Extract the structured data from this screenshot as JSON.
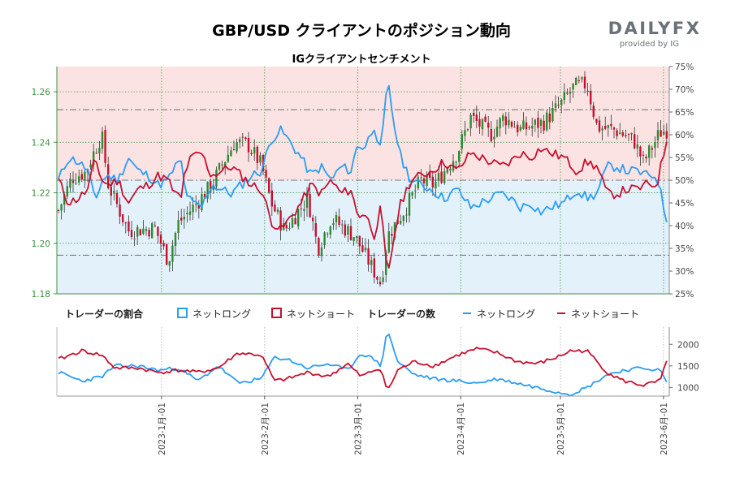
{
  "header": {
    "title": "GBP/USD クライアントのポジション動向",
    "subtitle": "IGクライアントセンチメント",
    "logo_main": "DAILYFX",
    "logo_sub": "provided by IG"
  },
  "legend": {
    "ratio_title": "トレーダーの割合",
    "count_title": "トレーダーの数",
    "net_long": "ネットロング",
    "net_short": "ネットショート"
  },
  "colors": {
    "long": "#2a9df4",
    "short": "#c8102e",
    "candle_up": "#2e8b2e",
    "candle_down": "#c8102e",
    "bg_top": "#fbe3e3",
    "bg_bottom": "#e3f1fb"
  },
  "chart_data": [
    {
      "type": "candlestick",
      "title": "GBP/USD",
      "axis_left": {
        "label": "GBP/USD",
        "ylim": [
          1.18,
          1.27
        ],
        "ticks": [
          "1.18",
          "1.20",
          "1.22",
          "1.24",
          "1.26"
        ]
      },
      "date_ticks": [
        "2023-1月-01",
        "2023-2月-01",
        "2023-3月-01",
        "2023-4月-01",
        "2023-5月-01",
        "2023-6月-01"
      ],
      "price_anchors": [
        [
          "2022-12-01",
          1.213
        ],
        [
          "2022-12-05",
          1.226
        ],
        [
          "2022-12-09",
          1.228
        ],
        [
          "2022-12-14",
          1.243
        ],
        [
          "2022-12-16",
          1.223
        ],
        [
          "2022-12-22",
          1.205
        ],
        [
          "2022-12-30",
          1.206
        ],
        [
          "2023-01-03",
          1.193
        ],
        [
          "2023-01-06",
          1.208
        ],
        [
          "2023-01-11",
          1.215
        ],
        [
          "2023-01-16",
          1.223
        ],
        [
          "2023-01-20",
          1.233
        ],
        [
          "2023-01-23",
          1.24
        ],
        [
          "2023-01-27",
          1.239
        ],
        [
          "2023-01-31",
          1.231
        ],
        [
          "2023-02-03",
          1.216
        ],
        [
          "2023-02-07",
          1.205
        ],
        [
          "2023-02-14",
          1.218
        ],
        [
          "2023-02-17",
          1.198
        ],
        [
          "2023-02-21",
          1.21
        ],
        [
          "2023-02-28",
          1.203
        ],
        [
          "2023-03-08",
          1.184
        ],
        [
          "2023-03-10",
          1.203
        ],
        [
          "2023-03-15",
          1.213
        ],
        [
          "2023-03-20",
          1.225
        ],
        [
          "2023-03-24",
          1.223
        ],
        [
          "2023-03-31",
          1.236
        ],
        [
          "2023-04-04",
          1.25
        ],
        [
          "2023-04-10",
          1.243
        ],
        [
          "2023-04-14",
          1.25
        ],
        [
          "2023-04-19",
          1.245
        ],
        [
          "2023-04-26",
          1.248
        ],
        [
          "2023-05-01",
          1.255
        ],
        [
          "2023-05-05",
          1.262
        ],
        [
          "2023-05-09",
          1.263
        ],
        [
          "2023-05-12",
          1.246
        ],
        [
          "2023-05-17",
          1.245
        ],
        [
          "2023-05-23",
          1.241
        ],
        [
          "2023-05-26",
          1.232
        ],
        [
          "2023-05-31",
          1.244
        ],
        [
          "2023-06-02",
          1.245
        ]
      ]
    },
    {
      "type": "line",
      "title": "IGクライアントセンチメント",
      "axis_right": {
        "ylim": [
          25,
          75
        ],
        "unit": "%",
        "ticks": [
          "25%",
          "30%",
          "35%",
          "40%",
          "45%",
          "50%",
          "55%",
          "60%",
          "65%",
          "70%",
          "75%"
        ]
      },
      "series": [
        {
          "name": "ネットロング",
          "anchors": [
            [
              "2022-12-01",
              50
            ],
            [
              "2022-12-04",
              55
            ],
            [
              "2022-12-07",
              54
            ],
            [
              "2022-12-10",
              52
            ],
            [
              "2022-12-12",
              45
            ],
            [
              "2022-12-14",
              50
            ],
            [
              "2022-12-16",
              51
            ],
            [
              "2022-12-19",
              50
            ],
            [
              "2022-12-22",
              55
            ],
            [
              "2022-12-25",
              52
            ],
            [
              "2022-12-28",
              51
            ],
            [
              "2022-12-31",
              49
            ],
            [
              "2023-01-03",
              50
            ],
            [
              "2023-01-05",
              53
            ],
            [
              "2023-01-07",
              54
            ],
            [
              "2023-01-08",
              48
            ],
            [
              "2023-01-10",
              45
            ],
            [
              "2023-01-13",
              44
            ],
            [
              "2023-01-16",
              49
            ],
            [
              "2023-01-19",
              48
            ],
            [
              "2023-01-22",
              47
            ],
            [
              "2023-01-25",
              49
            ],
            [
              "2023-01-28",
              51
            ],
            [
              "2023-01-31",
              52
            ],
            [
              "2023-02-03",
              59
            ],
            [
              "2023-02-06",
              61
            ],
            [
              "2023-02-09",
              58
            ],
            [
              "2023-02-12",
              55
            ],
            [
              "2023-02-15",
              51
            ],
            [
              "2023-02-18",
              53
            ],
            [
              "2023-02-21",
              50
            ],
            [
              "2023-02-24",
              53
            ],
            [
              "2023-02-27",
              52
            ],
            [
              "2023-03-01",
              58
            ],
            [
              "2023-03-03",
              57
            ],
            [
              "2023-03-06",
              62
            ],
            [
              "2023-03-08",
              56
            ],
            [
              "2023-03-10",
              72
            ],
            [
              "2023-03-12",
              62
            ],
            [
              "2023-03-14",
              55
            ],
            [
              "2023-03-17",
              50
            ],
            [
              "2023-03-20",
              49
            ],
            [
              "2023-03-23",
              48
            ],
            [
              "2023-03-27",
              46
            ],
            [
              "2023-03-31",
              48
            ],
            [
              "2023-04-04",
              44
            ],
            [
              "2023-04-07",
              45
            ],
            [
              "2023-04-10",
              46
            ],
            [
              "2023-04-13",
              47
            ],
            [
              "2023-04-16",
              46
            ],
            [
              "2023-04-19",
              44
            ],
            [
              "2023-04-22",
              45
            ],
            [
              "2023-04-25",
              43
            ],
            [
              "2023-04-28",
              44
            ],
            [
              "2023-05-02",
              45
            ],
            [
              "2023-05-06",
              48
            ],
            [
              "2023-05-09",
              46
            ],
            [
              "2023-05-12",
              47
            ],
            [
              "2023-05-15",
              53
            ],
            [
              "2023-05-18",
              53
            ],
            [
              "2023-05-21",
              52
            ],
            [
              "2023-05-24",
              52
            ],
            [
              "2023-05-27",
              51
            ],
            [
              "2023-05-30",
              51
            ],
            [
              "2023-06-02",
              41
            ]
          ]
        },
        {
          "name": "ネットショート",
          "anchors": [
            [
              "2022-12-01",
              50
            ],
            [
              "2022-12-04",
              45
            ],
            [
              "2022-12-07",
              46
            ],
            [
              "2022-12-10",
              48
            ],
            [
              "2022-12-12",
              55
            ],
            [
              "2022-12-14",
              50
            ],
            [
              "2022-12-16",
              49
            ],
            [
              "2022-12-19",
              50
            ],
            [
              "2022-12-22",
              45
            ],
            [
              "2022-12-25",
              48
            ],
            [
              "2022-12-28",
              49
            ],
            [
              "2022-12-31",
              51
            ],
            [
              "2023-01-03",
              50
            ],
            [
              "2023-01-05",
              47
            ],
            [
              "2023-01-07",
              46
            ],
            [
              "2023-01-08",
              52
            ],
            [
              "2023-01-10",
              55
            ],
            [
              "2023-01-13",
              56
            ],
            [
              "2023-01-16",
              51
            ],
            [
              "2023-01-19",
              52
            ],
            [
              "2023-01-22",
              53
            ],
            [
              "2023-01-25",
              51
            ],
            [
              "2023-01-28",
              49
            ],
            [
              "2023-01-31",
              48
            ],
            [
              "2023-02-03",
              41
            ],
            [
              "2023-02-06",
              39
            ],
            [
              "2023-02-09",
              42
            ],
            [
              "2023-02-12",
              45
            ],
            [
              "2023-02-15",
              49
            ],
            [
              "2023-02-18",
              47
            ],
            [
              "2023-02-21",
              50
            ],
            [
              "2023-02-24",
              47
            ],
            [
              "2023-02-27",
              48
            ],
            [
              "2023-03-01",
              42
            ],
            [
              "2023-03-03",
              43
            ],
            [
              "2023-03-06",
              38
            ],
            [
              "2023-03-08",
              44
            ],
            [
              "2023-03-10",
              28
            ],
            [
              "2023-03-12",
              38
            ],
            [
              "2023-03-14",
              45
            ],
            [
              "2023-03-17",
              50
            ],
            [
              "2023-03-20",
              51
            ],
            [
              "2023-03-23",
              52
            ],
            [
              "2023-03-27",
              54
            ],
            [
              "2023-03-31",
              52
            ],
            [
              "2023-04-04",
              56
            ],
            [
              "2023-04-07",
              55
            ],
            [
              "2023-04-10",
              54
            ],
            [
              "2023-04-13",
              53
            ],
            [
              "2023-04-16",
              54
            ],
            [
              "2023-04-19",
              56
            ],
            [
              "2023-04-22",
              55
            ],
            [
              "2023-04-25",
              57
            ],
            [
              "2023-04-28",
              56
            ],
            [
              "2023-05-02",
              55
            ],
            [
              "2023-05-06",
              52
            ],
            [
              "2023-05-09",
              54
            ],
            [
              "2023-05-12",
              53
            ],
            [
              "2023-05-15",
              47
            ],
            [
              "2023-05-18",
              47
            ],
            [
              "2023-05-21",
              48
            ],
            [
              "2023-05-24",
              48
            ],
            [
              "2023-05-27",
              49
            ],
            [
              "2023-05-30",
              49
            ],
            [
              "2023-06-02",
              59
            ]
          ]
        }
      ],
      "reference_lines": [
        33.5,
        50,
        65.5
      ]
    },
    {
      "type": "line",
      "title": "トレーダーの数",
      "axis_right": {
        "ylim": [
          800,
          2400
        ],
        "ticks": [
          "1000",
          "1500",
          "2000"
        ]
      },
      "series": [
        {
          "name": "ネットロング",
          "anchors": [
            [
              "2022-12-01",
              1350
            ],
            [
              "2022-12-08",
              1150
            ],
            [
              "2022-12-14",
              1250
            ],
            [
              "2022-12-18",
              1500
            ],
            [
              "2022-12-25",
              1500
            ],
            [
              "2022-12-31",
              1400
            ],
            [
              "2023-01-06",
              1450
            ],
            [
              "2023-01-12",
              1150
            ],
            [
              "2023-01-18",
              1500
            ],
            [
              "2023-01-24",
              1100
            ],
            [
              "2023-01-31",
              1200
            ],
            [
              "2023-02-04",
              1700
            ],
            [
              "2023-02-08",
              1650
            ],
            [
              "2023-02-14",
              1450
            ],
            [
              "2023-02-20",
              1550
            ],
            [
              "2023-02-26",
              1400
            ],
            [
              "2023-03-02",
              1800
            ],
            [
              "2023-03-06",
              1650
            ],
            [
              "2023-03-08",
              1500
            ],
            [
              "2023-03-10",
              2350
            ],
            [
              "2023-03-13",
              1600
            ],
            [
              "2023-03-18",
              1300
            ],
            [
              "2023-03-24",
              1200
            ],
            [
              "2023-03-31",
              1150
            ],
            [
              "2023-04-06",
              1100
            ],
            [
              "2023-04-12",
              1200
            ],
            [
              "2023-04-18",
              1100
            ],
            [
              "2023-04-24",
              1000
            ],
            [
              "2023-04-30",
              900
            ],
            [
              "2023-05-04",
              850
            ],
            [
              "2023-05-09",
              1000
            ],
            [
              "2023-05-15",
              1300
            ],
            [
              "2023-05-20",
              1400
            ],
            [
              "2023-05-26",
              1450
            ],
            [
              "2023-05-31",
              1400
            ],
            [
              "2023-06-02",
              1100
            ]
          ]
        },
        {
          "name": "ネットショート",
          "anchors": [
            [
              "2022-12-01",
              1650
            ],
            [
              "2022-12-08",
              1850
            ],
            [
              "2022-12-14",
              1750
            ],
            [
              "2022-12-18",
              1450
            ],
            [
              "2022-12-25",
              1450
            ],
            [
              "2022-12-31",
              1350
            ],
            [
              "2023-01-06",
              1400
            ],
            [
              "2023-01-12",
              1350
            ],
            [
              "2023-01-18",
              1450
            ],
            [
              "2023-01-24",
              1800
            ],
            [
              "2023-01-31",
              1750
            ],
            [
              "2023-02-04",
              1150
            ],
            [
              "2023-02-08",
              1200
            ],
            [
              "2023-02-14",
              1350
            ],
            [
              "2023-02-20",
              1250
            ],
            [
              "2023-02-26",
              1550
            ],
            [
              "2023-03-02",
              1250
            ],
            [
              "2023-03-06",
              1400
            ],
            [
              "2023-03-08",
              1450
            ],
            [
              "2023-03-10",
              900
            ],
            [
              "2023-03-13",
              1400
            ],
            [
              "2023-03-18",
              1600
            ],
            [
              "2023-03-24",
              1500
            ],
            [
              "2023-03-31",
              1750
            ],
            [
              "2023-04-06",
              1900
            ],
            [
              "2023-04-12",
              1800
            ],
            [
              "2023-04-18",
              1600
            ],
            [
              "2023-04-24",
              1550
            ],
            [
              "2023-04-30",
              1700
            ],
            [
              "2023-05-04",
              1850
            ],
            [
              "2023-05-09",
              1850
            ],
            [
              "2023-05-15",
              1350
            ],
            [
              "2023-05-20",
              1150
            ],
            [
              "2023-05-26",
              1050
            ],
            [
              "2023-05-31",
              1150
            ],
            [
              "2023-06-02",
              1600
            ]
          ]
        }
      ]
    }
  ]
}
